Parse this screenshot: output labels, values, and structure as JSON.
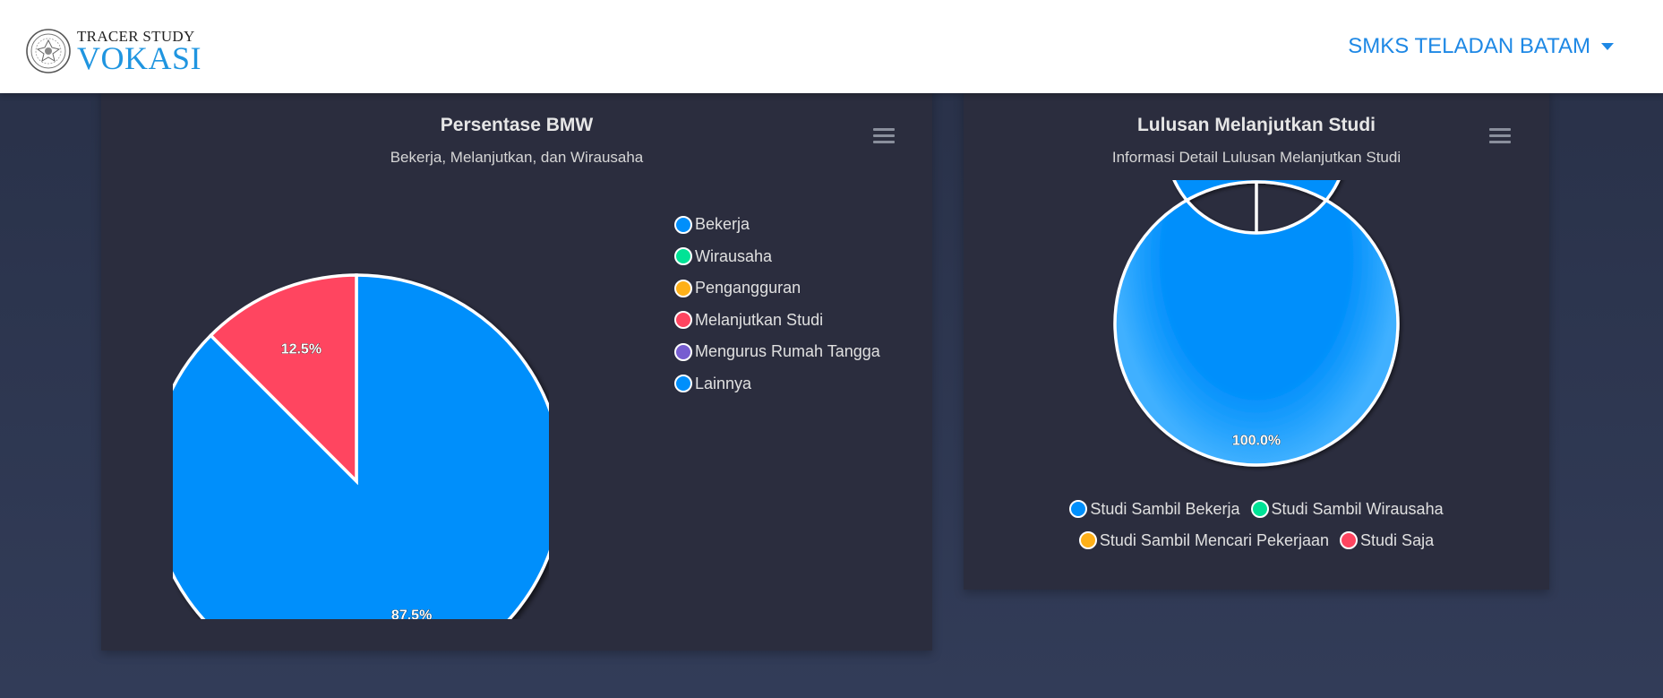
{
  "navbar": {
    "brand_top": "TRACER STUDY",
    "brand_main": "VOKASI",
    "school_name": "SMKS TELADAN BATAM"
  },
  "bmw_card": {
    "title": "Persentase BMW",
    "subtitle": "Bekerja, Melanjutkan, dan Wirausaha",
    "legend": [
      {
        "label": "Bekerja",
        "color": "#008ffb"
      },
      {
        "label": "Wirausaha",
        "color": "#00e396"
      },
      {
        "label": "Pengangguran",
        "color": "#feb019"
      },
      {
        "label": "Melanjutkan Studi",
        "color": "#ff4560"
      },
      {
        "label": "Mengurus Rumah Tangga",
        "color": "#775dd0"
      },
      {
        "label": "Lainnya",
        "color": "#008ffb"
      }
    ]
  },
  "studi_card": {
    "title": "Lulusan Melanjutkan Studi",
    "subtitle": "Informasi Detail Lulusan Melanjutkan Studi",
    "legend_rows": [
      [
        {
          "label": "Studi Sambil Bekerja",
          "color": "#008ffb"
        },
        {
          "label": "Studi Sambil Wirausaha",
          "color": "#00e396"
        }
      ],
      [
        {
          "label": "Studi Sambil Mencari Pekerjaan",
          "color": "#feb019"
        },
        {
          "label": "Studi Saja",
          "color": "#ff4560"
        }
      ]
    ]
  },
  "chart_data": [
    {
      "type": "pie",
      "title": "Persentase BMW",
      "subtitle": "Bekerja, Melanjutkan, dan Wirausaha",
      "categories": [
        "Bekerja",
        "Wirausaha",
        "Pengangguran",
        "Melanjutkan Studi",
        "Mengurus Rumah Tangga",
        "Lainnya"
      ],
      "values": [
        87.5,
        0,
        0,
        12.5,
        0,
        0
      ],
      "colors": [
        "#008ffb",
        "#00e396",
        "#feb019",
        "#ff4560",
        "#775dd0",
        "#008ffb"
      ],
      "data_labels": [
        "87.5%",
        "",
        "",
        "12.5%",
        "",
        ""
      ],
      "legend_position": "right"
    },
    {
      "type": "pie",
      "variant": "donut",
      "title": "Lulusan Melanjutkan Studi",
      "subtitle": "Informasi Detail Lulusan Melanjutkan Studi",
      "categories": [
        "Studi Sambil Bekerja",
        "Studi Sambil Wirausaha",
        "Studi Sambil Mencari Pekerjaan",
        "Studi Saja"
      ],
      "values": [
        100,
        0,
        0,
        0
      ],
      "colors": [
        "#008ffb",
        "#00e396",
        "#feb019",
        "#ff4560"
      ],
      "data_labels": [
        "100.0%",
        "",
        "",
        ""
      ],
      "legend_position": "bottom"
    }
  ]
}
